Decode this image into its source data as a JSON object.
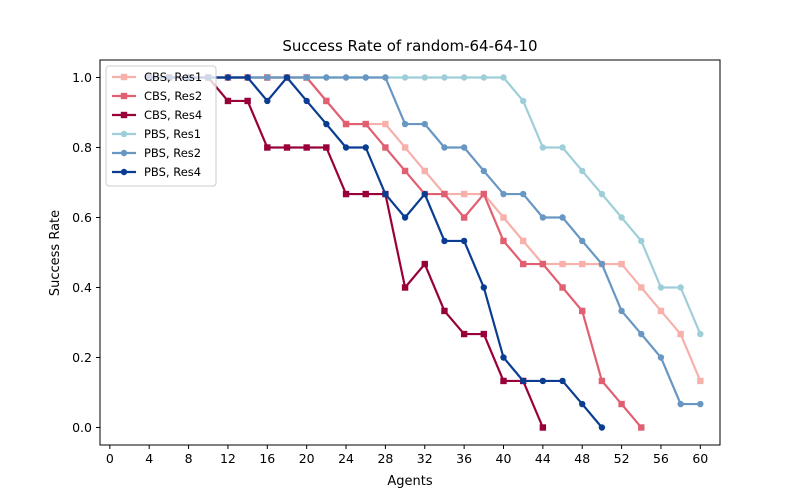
{
  "chart_data": {
    "type": "line",
    "title": "Success Rate of random-64-64-10",
    "xlabel": "Agents",
    "ylabel": "Success Rate",
    "xlim": [
      -1,
      62
    ],
    "ylim": [
      -0.05,
      1.05
    ],
    "xticks": [
      0,
      4,
      8,
      12,
      16,
      20,
      24,
      28,
      32,
      36,
      40,
      44,
      48,
      52,
      56,
      60
    ],
    "yticks": [
      0.0,
      0.2,
      0.4,
      0.6,
      0.8,
      1.0
    ],
    "ytick_labels": [
      "0.0",
      "0.2",
      "0.4",
      "0.6",
      "0.8",
      "1.0"
    ],
    "grid": false,
    "legend_position": "upper left",
    "series": [
      {
        "name": "CBS, Res1",
        "color": "#f8b0aa",
        "marker": "square",
        "x": [
          4,
          6,
          8,
          10,
          12,
          14,
          16,
          18,
          20,
          22,
          24,
          26,
          28,
          30,
          32,
          34,
          36,
          38,
          40,
          42,
          44,
          46,
          48,
          50,
          52,
          54,
          56,
          58,
          60
        ],
        "y": [
          1.0,
          1.0,
          1.0,
          1.0,
          1.0,
          1.0,
          1.0,
          1.0,
          1.0,
          0.933,
          0.867,
          0.867,
          0.867,
          0.8,
          0.733,
          0.667,
          0.667,
          0.667,
          0.6,
          0.533,
          0.467,
          0.467,
          0.467,
          0.467,
          0.467,
          0.4,
          0.333,
          0.267,
          0.133
        ]
      },
      {
        "name": "CBS, Res2",
        "color": "#e06072",
        "marker": "square",
        "x": [
          4,
          6,
          8,
          10,
          12,
          14,
          16,
          18,
          20,
          22,
          24,
          26,
          28,
          30,
          32,
          34,
          36,
          38,
          40,
          42,
          44,
          46,
          48,
          50,
          52,
          54
        ],
        "y": [
          1.0,
          1.0,
          1.0,
          1.0,
          1.0,
          1.0,
          1.0,
          1.0,
          1.0,
          0.933,
          0.867,
          0.867,
          0.8,
          0.733,
          0.667,
          0.667,
          0.6,
          0.667,
          0.533,
          0.467,
          0.467,
          0.4,
          0.333,
          0.133,
          0.067,
          0.0
        ]
      },
      {
        "name": "CBS, Res4",
        "color": "#99003a",
        "marker": "square",
        "x": [
          4,
          6,
          8,
          10,
          12,
          14,
          16,
          18,
          20,
          22,
          24,
          26,
          28,
          30,
          32,
          34,
          36,
          38,
          40,
          42,
          44
        ],
        "y": [
          1.0,
          1.0,
          1.0,
          1.0,
          0.933,
          0.933,
          0.8,
          0.8,
          0.8,
          0.8,
          0.667,
          0.667,
          0.667,
          0.4,
          0.467,
          0.333,
          0.267,
          0.267,
          0.133,
          0.133,
          0.0
        ]
      },
      {
        "name": "PBS, Res1",
        "color": "#9ecfd8",
        "marker": "circle",
        "x": [
          4,
          6,
          8,
          10,
          12,
          14,
          16,
          18,
          20,
          22,
          24,
          26,
          28,
          30,
          32,
          34,
          36,
          38,
          40,
          42,
          44,
          46,
          48,
          50,
          52,
          54,
          56,
          58,
          60
        ],
        "y": [
          1.0,
          1.0,
          1.0,
          1.0,
          1.0,
          1.0,
          1.0,
          1.0,
          1.0,
          1.0,
          1.0,
          1.0,
          1.0,
          1.0,
          1.0,
          1.0,
          1.0,
          1.0,
          1.0,
          0.933,
          0.8,
          0.8,
          0.733,
          0.667,
          0.6,
          0.533,
          0.4,
          0.4,
          0.267
        ]
      },
      {
        "name": "PBS, Res2",
        "color": "#6797c2",
        "marker": "circle",
        "x": [
          4,
          6,
          8,
          10,
          12,
          14,
          16,
          18,
          20,
          22,
          24,
          26,
          28,
          30,
          32,
          34,
          36,
          38,
          40,
          42,
          44,
          46,
          48,
          50,
          52,
          54,
          56,
          58,
          60
        ],
        "y": [
          1.0,
          1.0,
          1.0,
          1.0,
          1.0,
          1.0,
          1.0,
          1.0,
          1.0,
          1.0,
          1.0,
          1.0,
          1.0,
          0.867,
          0.867,
          0.8,
          0.8,
          0.733,
          0.667,
          0.667,
          0.6,
          0.6,
          0.533,
          0.467,
          0.333,
          0.267,
          0.2,
          0.067,
          0.067
        ]
      },
      {
        "name": "PBS, Res4",
        "color": "#0a3d91",
        "marker": "circle",
        "x": [
          4,
          6,
          8,
          10,
          12,
          14,
          16,
          18,
          20,
          22,
          24,
          26,
          28,
          30,
          32,
          34,
          36,
          38,
          40,
          42,
          44,
          46,
          48,
          50
        ],
        "y": [
          1.0,
          1.0,
          1.0,
          1.0,
          1.0,
          1.0,
          0.933,
          1.0,
          0.933,
          0.867,
          0.8,
          0.8,
          0.667,
          0.6,
          0.667,
          0.533,
          0.533,
          0.4,
          0.2,
          0.133,
          0.133,
          0.133,
          0.067,
          0.0
        ]
      }
    ]
  }
}
